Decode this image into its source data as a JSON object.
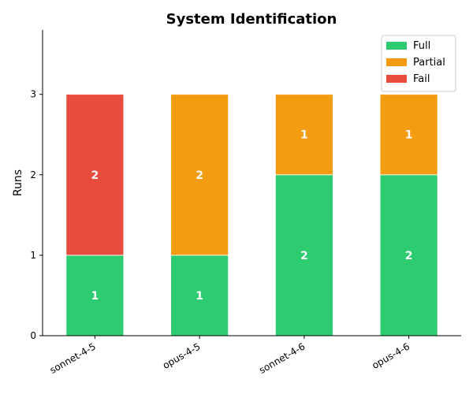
{
  "chart_data": {
    "type": "bar",
    "stacked": true,
    "title": "System Identification",
    "xlabel": "",
    "ylabel": "Runs",
    "categories": [
      "sonnet-4-5",
      "opus-4-5",
      "sonnet-4-6",
      "opus-4-6"
    ],
    "series": [
      {
        "name": "Full",
        "values": [
          1,
          1,
          2,
          2
        ],
        "color": "#2ecc71"
      },
      {
        "name": "Partial",
        "values": [
          0,
          2,
          1,
          1
        ],
        "color": "#f39c12"
      },
      {
        "name": "Fail",
        "values": [
          2,
          0,
          0,
          0
        ],
        "color": "#e74c3c"
      }
    ],
    "ylim": [
      0,
      3.8
    ],
    "yticks": [
      0,
      1,
      2,
      3
    ],
    "grid": false,
    "legend_position": "top-right",
    "data_labels": true
  }
}
